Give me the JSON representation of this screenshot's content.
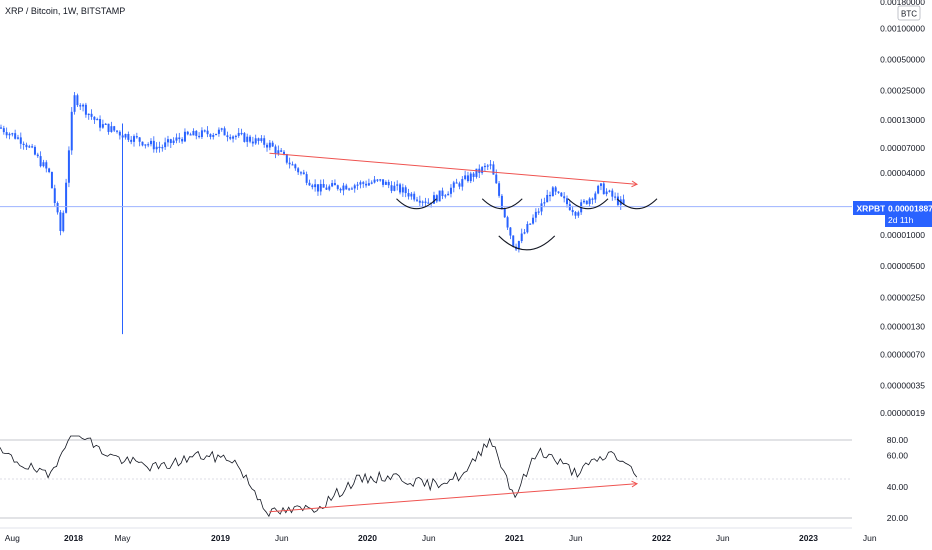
{
  "header": {
    "title": "XRP / Bitcoin, 1W, BITSTAMP"
  },
  "currency_label": "BTC",
  "price_tag": {
    "symbol": "XRPBTC",
    "price": "0.00001887",
    "countdown": "2d 11h"
  },
  "colors": {
    "candle": "#2962ff",
    "last_price_line": "#9db2ff",
    "trendline": "#ef5350",
    "arc": "#131722",
    "rsi_line": "#131722",
    "rsi_band": "#b2b5be",
    "tag_bg": "#2962ff"
  },
  "chart_data": [
    {
      "type": "candlestick",
      "title": "XRP / Bitcoin, 1W, BITSTAMP",
      "log_scale": true,
      "y_tick_labels": [
        "0.00180000",
        "0.00100000",
        "0.00050000",
        "0.00025000",
        "0.00013000",
        "0.00007000",
        "0.00004000",
        "0.00001887",
        "0.00001000",
        "0.00000500",
        "0.00000250",
        "0.00000130",
        "0.00000070",
        "0.00000035",
        "0.00000019"
      ],
      "x_tick_labels": [
        "Aug",
        "2018",
        "May",
        "2019",
        "Jun",
        "2020",
        "Jun",
        "2021",
        "Jun",
        "2022",
        "Jun",
        "2023",
        "Jun"
      ],
      "bold_x_ticks": [
        "2018",
        "2019",
        "2020",
        "2021",
        "2022",
        "2023"
      ],
      "last_price": 1.887e-05,
      "close_trend": [
        {
          "date": "2017-07",
          "value": 0.00011
        },
        {
          "date": "2017-09",
          "value": 8e-05
        },
        {
          "date": "2017-11",
          "value": 4e-05
        },
        {
          "date": "2017-12",
          "value": 1e-05
        },
        {
          "date": "2018-01",
          "value": 0.00022
        },
        {
          "date": "2018-03",
          "value": 0.00012
        },
        {
          "date": "2018-05",
          "value": 9.5e-05
        },
        {
          "date": "2018-08",
          "value": 7e-05
        },
        {
          "date": "2018-10",
          "value": 9e-05
        },
        {
          "date": "2019-01",
          "value": 0.0001
        },
        {
          "date": "2019-05",
          "value": 7.5e-05
        },
        {
          "date": "2019-09",
          "value": 2.8e-05
        },
        {
          "date": "2020-02",
          "value": 3.3e-05
        },
        {
          "date": "2020-06",
          "value": 2.1e-05
        },
        {
          "date": "2020-11",
          "value": 4.8e-05
        },
        {
          "date": "2021-01",
          "value": 7.5e-06
        },
        {
          "date": "2021-04",
          "value": 2.7e-05
        },
        {
          "date": "2021-06",
          "value": 1.7e-05
        },
        {
          "date": "2021-08",
          "value": 2.9e-05
        },
        {
          "date": "2021-10",
          "value": 1.89e-05
        }
      ],
      "annotations": {
        "trendline": {
          "from": {
            "date": "2019-05",
            "value": 6.2e-05
          },
          "to": {
            "date": "2021-11",
            "value": 3.1e-05
          }
        },
        "arcs": [
          "2020-05",
          "2020-12",
          "2021-02",
          "2021-07",
          "2021-11"
        ]
      }
    },
    {
      "type": "line",
      "name": "RSI",
      "y_tick_labels": [
        "80.00",
        "60.00",
        "40.00",
        "20.00"
      ],
      "bands": [
        70,
        50,
        20
      ],
      "values": [
        {
          "date": "2017-07",
          "value": 62
        },
        {
          "date": "2017-09",
          "value": 54
        },
        {
          "date": "2017-11",
          "value": 46
        },
        {
          "date": "2018-01",
          "value": 80
        },
        {
          "date": "2018-03",
          "value": 64
        },
        {
          "date": "2018-05",
          "value": 57
        },
        {
          "date": "2018-08",
          "value": 52
        },
        {
          "date": "2018-11",
          "value": 60
        },
        {
          "date": "2019-02",
          "value": 58
        },
        {
          "date": "2019-05",
          "value": 23
        },
        {
          "date": "2019-09",
          "value": 27
        },
        {
          "date": "2019-12",
          "value": 44
        },
        {
          "date": "2020-03",
          "value": 47
        },
        {
          "date": "2020-06",
          "value": 41
        },
        {
          "date": "2020-09",
          "value": 48
        },
        {
          "date": "2020-11",
          "value": 72
        },
        {
          "date": "2021-01",
          "value": 34
        },
        {
          "date": "2021-03",
          "value": 64
        },
        {
          "date": "2021-06",
          "value": 49
        },
        {
          "date": "2021-09",
          "value": 62
        },
        {
          "date": "2021-11",
          "value": 47
        }
      ],
      "annotations": {
        "trendline": {
          "from": {
            "date": "2019-05",
            "value": 24
          },
          "to": {
            "date": "2021-11",
            "value": 42
          }
        }
      }
    }
  ]
}
